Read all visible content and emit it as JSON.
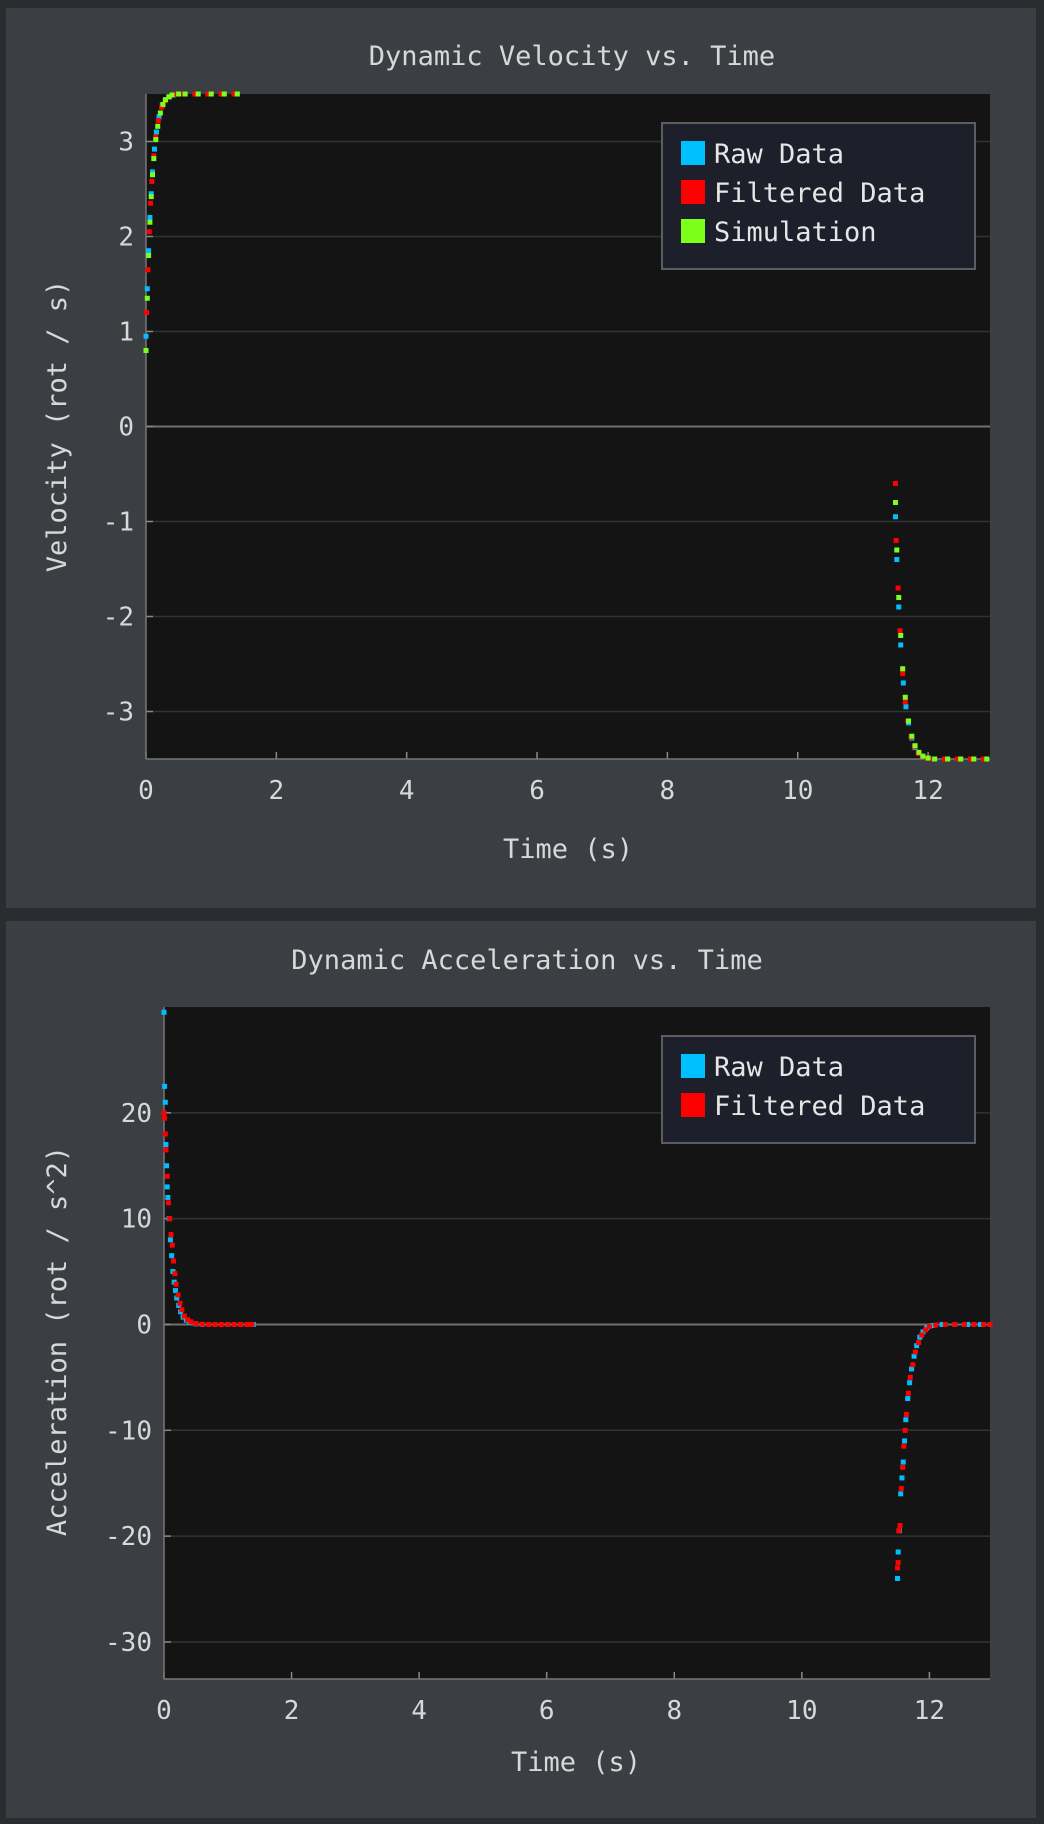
{
  "colors": {
    "page_background": "#2a2d30",
    "panel_background": "#3b3f43",
    "plot_background": "#141414",
    "grid": "#333333",
    "zero_line": "#707070",
    "text": "#d8d8d8",
    "legend_background": "#1d1f2a",
    "legend_border": "#5a5d62"
  },
  "chart_data": [
    {
      "type": "scatter",
      "title": "Dynamic Velocity vs. Time",
      "xlabel": "Time (s)",
      "ylabel": "Velocity (rot / s)",
      "xlim": [
        0,
        12.95
      ],
      "ylim": [
        -3.5,
        3.5
      ],
      "xticks": [
        0,
        2,
        4,
        6,
        8,
        10,
        12
      ],
      "yticks": [
        -3,
        -2,
        -1,
        0,
        1,
        2,
        3
      ],
      "grid": true,
      "legend_position": "top-right",
      "series": [
        {
          "name": "Raw Data",
          "color": "#00bfff",
          "x": [
            0.0,
            0.02,
            0.04,
            0.06,
            0.08,
            0.1,
            0.13,
            0.16,
            0.2,
            0.25,
            0.3,
            0.36,
            0.42,
            0.5,
            0.6,
            0.8,
            1.0,
            1.2,
            1.4,
            11.5,
            11.52,
            11.55,
            11.58,
            11.62,
            11.66,
            11.7,
            11.75,
            11.8,
            11.86,
            11.92,
            12.0,
            12.1,
            12.3,
            12.5,
            12.7,
            12.9
          ],
          "y": [
            0.95,
            1.45,
            1.85,
            2.2,
            2.45,
            2.68,
            2.92,
            3.1,
            3.26,
            3.38,
            3.44,
            3.47,
            3.49,
            3.5,
            3.5,
            3.5,
            3.5,
            3.5,
            3.5,
            -0.95,
            -1.4,
            -1.9,
            -2.3,
            -2.7,
            -2.95,
            -3.12,
            -3.28,
            -3.38,
            -3.44,
            -3.47,
            -3.49,
            -3.5,
            -3.5,
            -3.5,
            -3.5,
            -3.5
          ]
        },
        {
          "name": "Filtered Data",
          "color": "#ff0000",
          "x": [
            0.01,
            0.03,
            0.05,
            0.07,
            0.09,
            0.12,
            0.15,
            0.19,
            0.24,
            0.29,
            0.35,
            0.41,
            0.48,
            0.58,
            0.75,
            0.95,
            1.15,
            1.35,
            11.5,
            11.51,
            11.54,
            11.57,
            11.61,
            11.65,
            11.69,
            11.74,
            11.79,
            11.85,
            11.91,
            11.98,
            12.08,
            12.25,
            12.45,
            12.65,
            12.85
          ],
          "y": [
            1.2,
            1.65,
            2.05,
            2.35,
            2.58,
            2.85,
            3.05,
            3.22,
            3.36,
            3.43,
            3.47,
            3.49,
            3.5,
            3.5,
            3.5,
            3.5,
            3.5,
            3.5,
            -0.6,
            -1.2,
            -1.7,
            -2.15,
            -2.6,
            -2.9,
            -3.1,
            -3.27,
            -3.37,
            -3.44,
            -3.47,
            -3.49,
            -3.5,
            -3.5,
            -3.5,
            -3.5,
            -3.5
          ]
        },
        {
          "name": "Simulation",
          "color": "#7cff1a",
          "x": [
            0.0,
            0.02,
            0.04,
            0.06,
            0.08,
            0.1,
            0.12,
            0.15,
            0.18,
            0.22,
            0.26,
            0.3,
            0.35,
            0.4,
            0.5,
            0.6,
            0.8,
            1.0,
            1.2,
            1.4,
            11.5,
            11.52,
            11.55,
            11.58,
            11.61,
            11.65,
            11.7,
            11.75,
            11.8,
            11.86,
            11.92,
            12.0,
            12.1,
            12.3,
            12.5,
            12.7,
            12.9
          ],
          "y": [
            0.8,
            1.35,
            1.8,
            2.15,
            2.42,
            2.65,
            2.82,
            3.02,
            3.16,
            3.3,
            3.39,
            3.44,
            3.47,
            3.49,
            3.5,
            3.5,
            3.5,
            3.5,
            3.5,
            3.5,
            -0.8,
            -1.3,
            -1.8,
            -2.2,
            -2.55,
            -2.85,
            -3.1,
            -3.26,
            -3.36,
            -3.43,
            -3.47,
            -3.49,
            -3.5,
            -3.5,
            -3.5,
            -3.5,
            -3.5
          ]
        }
      ]
    },
    {
      "type": "scatter",
      "title": "Dynamic Acceleration vs. Time",
      "xlabel": "Time (s)",
      "ylabel": "Acceleration (rot / s^2)",
      "xlim": [
        0,
        12.95
      ],
      "ylim": [
        -33.5,
        30
      ],
      "xticks": [
        0,
        2,
        4,
        6,
        8,
        10,
        12
      ],
      "yticks": [
        -30,
        -20,
        -10,
        0,
        10,
        20
      ],
      "grid": true,
      "legend_position": "top-right",
      "series": [
        {
          "name": "Raw Data",
          "color": "#00bfff",
          "x": [
            0.0,
            0.01,
            0.02,
            0.03,
            0.04,
            0.05,
            0.06,
            0.08,
            0.1,
            0.12,
            0.14,
            0.16,
            0.18,
            0.2,
            0.23,
            0.26,
            0.3,
            0.35,
            0.4,
            0.5,
            0.6,
            0.8,
            1.0,
            1.2,
            1.4,
            11.5,
            11.51,
            11.53,
            11.55,
            11.57,
            11.59,
            11.61,
            11.63,
            11.66,
            11.69,
            11.72,
            11.76,
            11.8,
            11.85,
            11.9,
            11.96,
            12.05,
            12.2,
            12.4,
            12.6,
            12.8,
            12.95
          ],
          "y": [
            29.5,
            22.5,
            21.0,
            17.0,
            15.0,
            13.0,
            12.0,
            10.0,
            8.0,
            6.5,
            5.0,
            4.0,
            3.2,
            2.5,
            1.8,
            1.2,
            0.7,
            0.4,
            0.2,
            0.05,
            0.0,
            0.0,
            0.0,
            0.0,
            0.0,
            -24.0,
            -21.5,
            -19.5,
            -16.0,
            -14.5,
            -13.0,
            -11.0,
            -9.0,
            -7.0,
            -5.5,
            -4.2,
            -3.0,
            -2.0,
            -1.2,
            -0.7,
            -0.3,
            -0.1,
            0.0,
            0.0,
            0.0,
            0.0,
            0.0
          ]
        },
        {
          "name": "Filtered Data",
          "color": "#ff0000",
          "x": [
            0.0,
            0.01,
            0.02,
            0.03,
            0.05,
            0.07,
            0.09,
            0.11,
            0.13,
            0.15,
            0.17,
            0.19,
            0.22,
            0.25,
            0.28,
            0.32,
            0.37,
            0.42,
            0.5,
            0.6,
            0.7,
            0.8,
            0.9,
            1.0,
            1.1,
            1.2,
            1.3,
            1.38,
            11.5,
            11.51,
            11.52,
            11.54,
            11.56,
            11.58,
            11.6,
            11.62,
            11.64,
            11.67,
            11.7,
            11.74,
            11.78,
            11.83,
            11.88,
            11.94,
            12.0,
            12.1,
            12.25,
            12.4,
            12.55,
            12.7,
            12.85,
            12.95
          ],
          "y": [
            20.0,
            19.5,
            18.0,
            16.5,
            14.0,
            11.5,
            10.0,
            8.5,
            7.5,
            6.0,
            4.8,
            3.8,
            2.8,
            2.0,
            1.4,
            0.8,
            0.45,
            0.25,
            0.08,
            0.02,
            0.0,
            0.0,
            0.0,
            0.0,
            0.0,
            0.0,
            0.0,
            0.0,
            -23.0,
            -22.5,
            -19.5,
            -19.0,
            -15.5,
            -13.5,
            -11.5,
            -10.0,
            -8.5,
            -6.5,
            -5.0,
            -3.8,
            -2.6,
            -1.7,
            -1.0,
            -0.5,
            -0.2,
            -0.05,
            0.0,
            0.0,
            0.0,
            0.0,
            0.0,
            0.0
          ]
        }
      ]
    }
  ]
}
